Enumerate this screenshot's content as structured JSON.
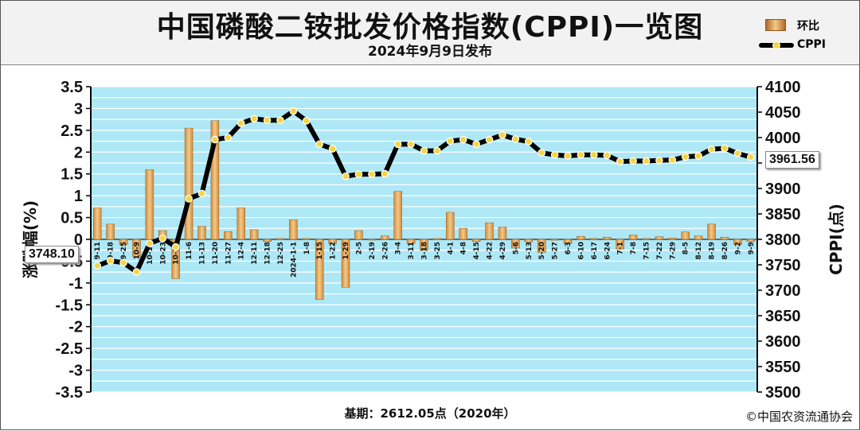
{
  "header": {
    "title": "中国磷酸二铵批发价格指数(CPPI)一览图",
    "subtitle": "2024年9月9日发布"
  },
  "legend": {
    "bar_label": "环比",
    "line_label": "CPPI"
  },
  "callouts": {
    "first": "3748.10",
    "last": "3961.56"
  },
  "footer": {
    "base": "基期：2612.05点（2020年）",
    "copyright": "©中国农资流通协会"
  },
  "colors": {
    "plot_bg": "#aee8f6",
    "grid": "#ffffff",
    "bar": "#d08a3a",
    "bar_light": "#f3c98a",
    "line": "#000000",
    "marker": "#f5d547"
  },
  "chart_data": {
    "type": "bar+line",
    "title": "中国磷酸二铵批发价格指数(CPPI)一览图",
    "left_axis": {
      "label": "涨跌幅(%)",
      "range": [
        -3.5,
        3.5
      ],
      "ticks": [
        "3.5",
        "3",
        "2.5",
        "2",
        "1.5",
        "1",
        "0.5",
        "0",
        "-0.5",
        "-1",
        "-1.5",
        "-2",
        "-2.5",
        "-3",
        "-3.5"
      ]
    },
    "right_axis": {
      "label": "CPPI(点)",
      "range": [
        3500,
        4100
      ],
      "ticks": [
        "4100",
        "4050",
        "4000",
        "3950",
        "3900",
        "3850",
        "3800",
        "3750",
        "3700",
        "3650",
        "3600",
        "3550",
        "3500"
      ]
    },
    "grid": true,
    "legend_position": "top-right",
    "categories": [
      "9-11",
      "9-18",
      "9-25",
      "10-9",
      "10-16",
      "10-23",
      "10-30",
      "11-6",
      "11-13",
      "11-20",
      "11-27",
      "12-4",
      "12-11",
      "12-18",
      "12-25",
      "2024-1-1",
      "1-8",
      "1-15",
      "1-22",
      "1-29",
      "2-5",
      "2-19",
      "2-26",
      "3-4",
      "3-11",
      "3-18",
      "3-25",
      "4-1",
      "4-8",
      "4-15",
      "4-22",
      "4-29",
      "5-6",
      "5-13",
      "5-20",
      "5-27",
      "6-3",
      "6-10",
      "6-17",
      "6-24",
      "7-1",
      "7-8",
      "7-15",
      "7-22",
      "7-29",
      "8-5",
      "8-12",
      "8-19",
      "8-26",
      "9-2",
      "9-9"
    ],
    "series": [
      {
        "name": "环比",
        "type": "bar",
        "axis": "left",
        "values": [
          0.72,
          0.35,
          -0.12,
          -0.4,
          1.6,
          0.2,
          -0.9,
          2.55,
          0.3,
          2.72,
          0.18,
          0.72,
          0.22,
          -0.05,
          0.02,
          0.45,
          0.02,
          -1.38,
          -0.1,
          -1.1,
          0.2,
          0.0,
          0.08,
          1.1,
          -0.1,
          -0.25,
          0.02,
          0.62,
          0.25,
          -0.05,
          0.38,
          0.28,
          -0.2,
          -0.06,
          -0.3,
          -0.02,
          -0.1,
          0.07,
          0.02,
          0.05,
          -0.22,
          0.1,
          0.02,
          0.06,
          0.03,
          0.17,
          0.08,
          0.35,
          0.05,
          -0.12,
          -0.05
        ]
      },
      {
        "name": "CPPI",
        "type": "line",
        "axis": "right",
        "values": [
          3748.1,
          3758,
          3754,
          3736,
          3792,
          3802,
          3785,
          3880,
          3890,
          3996,
          4000,
          4028,
          4037,
          4034,
          4034,
          4052,
          4033,
          3987,
          3978,
          3924,
          3928,
          3928,
          3929,
          3987,
          3987,
          3974,
          3974,
          3993,
          3996,
          3987,
          3996,
          4005,
          3997,
          3992,
          3970,
          3966,
          3964,
          3966,
          3966,
          3965,
          3953,
          3954,
          3954,
          3955,
          3956,
          3962,
          3964,
          3977,
          3979,
          3969,
          3961.56
        ]
      }
    ]
  }
}
